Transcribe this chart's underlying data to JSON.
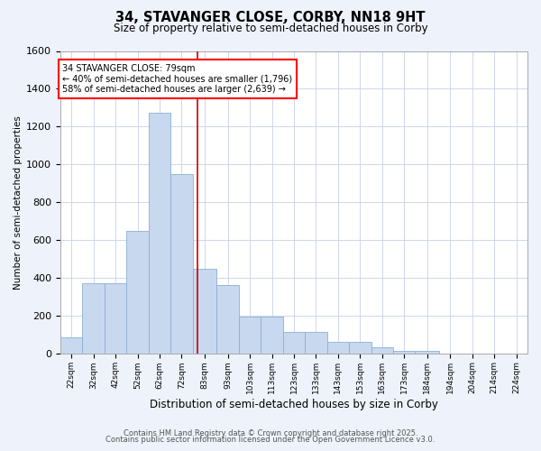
{
  "title_line1": "34, STAVANGER CLOSE, CORBY, NN18 9HT",
  "title_line2": "Size of property relative to semi-detached houses in Corby",
  "xlabel": "Distribution of semi-detached houses by size in Corby",
  "ylabel": "Number of semi-detached properties",
  "footnote1": "Contains HM Land Registry data © Crown copyright and database right 2025.",
  "footnote2": "Contains public sector information licensed under the Open Government Licence v3.0.",
  "bin_edges": [
    17,
    27,
    37,
    47,
    57,
    67,
    77,
    88,
    98,
    108,
    118,
    128,
    138,
    148,
    158,
    168,
    178,
    189,
    199,
    209,
    219,
    229
  ],
  "bin_labels": [
    "22sqm",
    "32sqm",
    "42sqm",
    "52sqm",
    "62sqm",
    "72sqm",
    "83sqm",
    "93sqm",
    "103sqm",
    "113sqm",
    "123sqm",
    "133sqm",
    "143sqm",
    "153sqm",
    "163sqm",
    "173sqm",
    "184sqm",
    "194sqm",
    "204sqm",
    "214sqm",
    "224sqm"
  ],
  "counts": [
    90,
    375,
    375,
    650,
    1275,
    950,
    450,
    365,
    195,
    195,
    115,
    115,
    65,
    65,
    35,
    15,
    15,
    0,
    0,
    0,
    0
  ],
  "bar_color": "#c8d8ee",
  "bar_edge_color": "#8ab0d8",
  "property_size": 79,
  "property_label": "34 STAVANGER CLOSE: 79sqm",
  "smaller_pct": "40%",
  "smaller_count": "1,796",
  "larger_pct": "58%",
  "larger_count": "2,639",
  "vline_color": "#cc0000",
  "ylim": [
    0,
    1600
  ],
  "yticks": [
    0,
    200,
    400,
    600,
    800,
    1000,
    1200,
    1400,
    1600
  ],
  "background_color": "#eef2fb",
  "plot_bg_color": "#ffffff",
  "grid_color": "#c8d0e8"
}
